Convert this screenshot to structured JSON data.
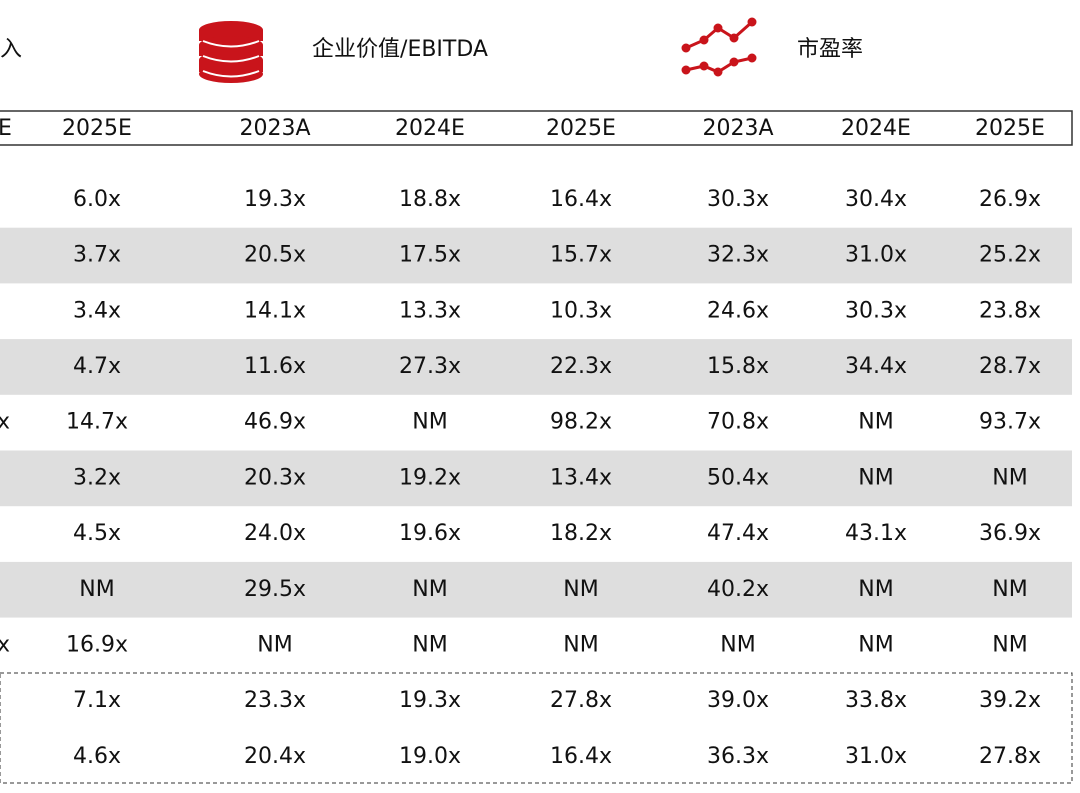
{
  "header": {
    "groups": [
      "入",
      "企业价值/EBITDA",
      "市盈率"
    ],
    "columns": [
      "E",
      "2025E",
      "2023A",
      "2024E",
      "2025E",
      "2023A",
      "2024E",
      "2025E"
    ]
  },
  "table": {
    "rows": [
      {
        "cells": [
          "6.0x",
          "19.3x",
          "18.8x",
          "16.4x",
          "30.3x",
          "30.4x",
          "26.9x"
        ]
      },
      {
        "cells": [
          "3.7x",
          "20.5x",
          "17.5x",
          "15.7x",
          "32.3x",
          "31.0x",
          "25.2x"
        ]
      },
      {
        "cells": [
          "3.4x",
          "14.1x",
          "13.3x",
          "10.3x",
          "24.6x",
          "30.3x",
          "23.8x"
        ]
      },
      {
        "cells": [
          "4.7x",
          "11.6x",
          "27.3x",
          "22.3x",
          "15.8x",
          "34.4x",
          "28.7x"
        ]
      },
      {
        "edge": "x",
        "cells": [
          "14.7x",
          "46.9x",
          "NM",
          "98.2x",
          "70.8x",
          "NM",
          "93.7x"
        ]
      },
      {
        "cells": [
          "3.2x",
          "20.3x",
          "19.2x",
          "13.4x",
          "50.4x",
          "NM",
          "NM"
        ]
      },
      {
        "cells": [
          "4.5x",
          "24.0x",
          "19.6x",
          "18.2x",
          "47.4x",
          "43.1x",
          "36.9x"
        ]
      },
      {
        "cells": [
          "NM",
          "29.5x",
          "NM",
          "NM",
          "40.2x",
          "NM",
          "NM"
        ]
      },
      {
        "edge": "x",
        "cells": [
          "16.9x",
          "NM",
          "NM",
          "NM",
          "NM",
          "NM",
          "NM"
        ]
      },
      {
        "cells": [
          "7.1x",
          "23.3x",
          "19.3x",
          "27.8x",
          "39.0x",
          "33.8x",
          "39.2x"
        ]
      },
      {
        "cells": [
          "4.6x",
          "20.4x",
          "19.0x",
          "16.4x",
          "36.3x",
          "31.0x",
          "27.8x"
        ]
      }
    ]
  }
}
